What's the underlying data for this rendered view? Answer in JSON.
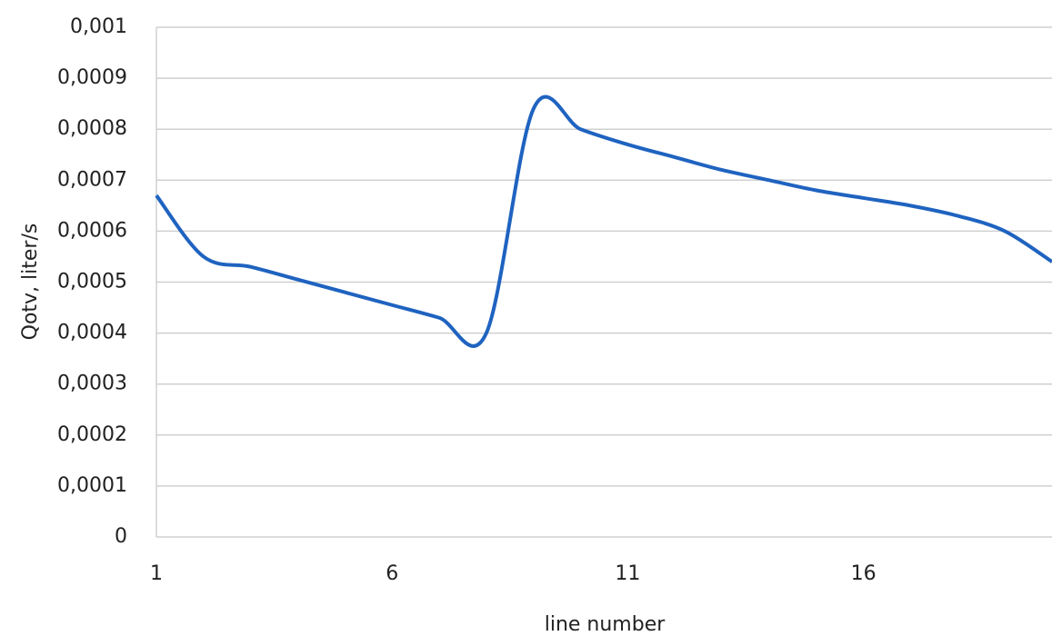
{
  "chart_data": {
    "type": "line",
    "x_label": "line number",
    "y_label": "Qotv, liter/s",
    "x": [
      1,
      2,
      3,
      4,
      5,
      6,
      7,
      8,
      9,
      10,
      11,
      12,
      13,
      14,
      15,
      16,
      17,
      18,
      19,
      20
    ],
    "series": [
      {
        "name": "Qotv",
        "color": "#1f63c0",
        "values": [
          0.00067,
          0.00055,
          0.00053,
          0.000505,
          0.00048,
          0.000455,
          0.00043,
          0.0004,
          0.00084,
          0.0008,
          0.00077,
          0.000745,
          0.00072,
          0.0007,
          0.00068,
          0.000665,
          0.00065,
          0.00063,
          0.0006,
          0.00054
        ]
      }
    ],
    "xlim": [
      1,
      20
    ],
    "xticks": [
      1,
      6,
      11,
      16
    ],
    "ylim": [
      0,
      0.001
    ],
    "yticks": [
      0,
      {
        "value": 0.0001,
        "label": "0,0001"
      },
      {
        "value": 0.0002,
        "label": "0,0002"
      },
      {
        "value": 0.0003,
        "label": "0,0003"
      },
      {
        "value": 0.0004,
        "label": "0,0004"
      },
      {
        "value": 0.0005,
        "label": "0,0005"
      },
      {
        "value": 0.0006,
        "label": "0,0006"
      },
      {
        "value": 0.0007,
        "label": "0,0007"
      },
      {
        "value": 0.0008,
        "label": "0,0008"
      },
      {
        "value": 0.0009,
        "label": "0,0009"
      },
      {
        "value": 0.001,
        "label": "0,001"
      }
    ],
    "grid": true
  }
}
